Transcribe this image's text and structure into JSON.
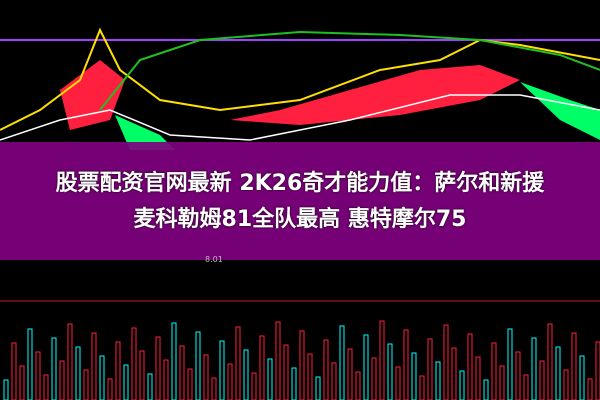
{
  "headline": {
    "line1": "股票配资官网最新 2K26奇才能力值：萨尔和新援",
    "line2": "麦科勒姆81全队最高 惠特摩尔75"
  },
  "chart": {
    "low_label": "8.01",
    "colors": {
      "overlay": "#800080",
      "up": "#ff2040",
      "down": "#00ff66",
      "ma_yellow": "#ffe000",
      "ma_green": "#20c020",
      "ma_purple": "#a040ff"
    }
  }
}
